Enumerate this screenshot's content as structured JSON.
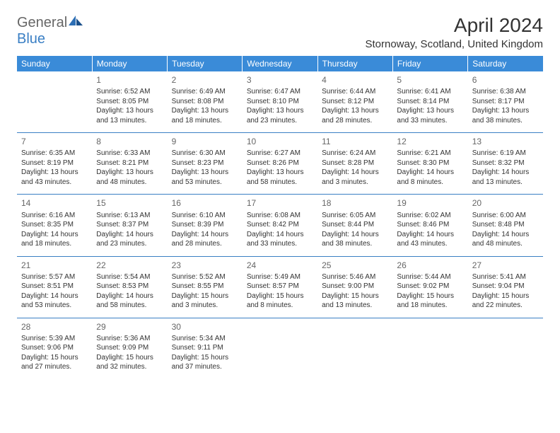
{
  "logo": {
    "general": "General",
    "blue": "Blue"
  },
  "title": "April 2024",
  "location": "Stornoway, Scotland, United Kingdom",
  "colors": {
    "header_bg": "#3a8bd8",
    "header_text": "#ffffff",
    "rule": "#3a7fc4",
    "text": "#333333",
    "daynum": "#666666"
  },
  "weekdays": [
    "Sunday",
    "Monday",
    "Tuesday",
    "Wednesday",
    "Thursday",
    "Friday",
    "Saturday"
  ],
  "weeks": [
    [
      {
        "day": "",
        "sunrise": "",
        "sunset": "",
        "daylight": ""
      },
      {
        "day": "1",
        "sunrise": "Sunrise: 6:52 AM",
        "sunset": "Sunset: 8:05 PM",
        "daylight": "Daylight: 13 hours and 13 minutes."
      },
      {
        "day": "2",
        "sunrise": "Sunrise: 6:49 AM",
        "sunset": "Sunset: 8:08 PM",
        "daylight": "Daylight: 13 hours and 18 minutes."
      },
      {
        "day": "3",
        "sunrise": "Sunrise: 6:47 AM",
        "sunset": "Sunset: 8:10 PM",
        "daylight": "Daylight: 13 hours and 23 minutes."
      },
      {
        "day": "4",
        "sunrise": "Sunrise: 6:44 AM",
        "sunset": "Sunset: 8:12 PM",
        "daylight": "Daylight: 13 hours and 28 minutes."
      },
      {
        "day": "5",
        "sunrise": "Sunrise: 6:41 AM",
        "sunset": "Sunset: 8:14 PM",
        "daylight": "Daylight: 13 hours and 33 minutes."
      },
      {
        "day": "6",
        "sunrise": "Sunrise: 6:38 AM",
        "sunset": "Sunset: 8:17 PM",
        "daylight": "Daylight: 13 hours and 38 minutes."
      }
    ],
    [
      {
        "day": "7",
        "sunrise": "Sunrise: 6:35 AM",
        "sunset": "Sunset: 8:19 PM",
        "daylight": "Daylight: 13 hours and 43 minutes."
      },
      {
        "day": "8",
        "sunrise": "Sunrise: 6:33 AM",
        "sunset": "Sunset: 8:21 PM",
        "daylight": "Daylight: 13 hours and 48 minutes."
      },
      {
        "day": "9",
        "sunrise": "Sunrise: 6:30 AM",
        "sunset": "Sunset: 8:23 PM",
        "daylight": "Daylight: 13 hours and 53 minutes."
      },
      {
        "day": "10",
        "sunrise": "Sunrise: 6:27 AM",
        "sunset": "Sunset: 8:26 PM",
        "daylight": "Daylight: 13 hours and 58 minutes."
      },
      {
        "day": "11",
        "sunrise": "Sunrise: 6:24 AM",
        "sunset": "Sunset: 8:28 PM",
        "daylight": "Daylight: 14 hours and 3 minutes."
      },
      {
        "day": "12",
        "sunrise": "Sunrise: 6:21 AM",
        "sunset": "Sunset: 8:30 PM",
        "daylight": "Daylight: 14 hours and 8 minutes."
      },
      {
        "day": "13",
        "sunrise": "Sunrise: 6:19 AM",
        "sunset": "Sunset: 8:32 PM",
        "daylight": "Daylight: 14 hours and 13 minutes."
      }
    ],
    [
      {
        "day": "14",
        "sunrise": "Sunrise: 6:16 AM",
        "sunset": "Sunset: 8:35 PM",
        "daylight": "Daylight: 14 hours and 18 minutes."
      },
      {
        "day": "15",
        "sunrise": "Sunrise: 6:13 AM",
        "sunset": "Sunset: 8:37 PM",
        "daylight": "Daylight: 14 hours and 23 minutes."
      },
      {
        "day": "16",
        "sunrise": "Sunrise: 6:10 AM",
        "sunset": "Sunset: 8:39 PM",
        "daylight": "Daylight: 14 hours and 28 minutes."
      },
      {
        "day": "17",
        "sunrise": "Sunrise: 6:08 AM",
        "sunset": "Sunset: 8:42 PM",
        "daylight": "Daylight: 14 hours and 33 minutes."
      },
      {
        "day": "18",
        "sunrise": "Sunrise: 6:05 AM",
        "sunset": "Sunset: 8:44 PM",
        "daylight": "Daylight: 14 hours and 38 minutes."
      },
      {
        "day": "19",
        "sunrise": "Sunrise: 6:02 AM",
        "sunset": "Sunset: 8:46 PM",
        "daylight": "Daylight: 14 hours and 43 minutes."
      },
      {
        "day": "20",
        "sunrise": "Sunrise: 6:00 AM",
        "sunset": "Sunset: 8:48 PM",
        "daylight": "Daylight: 14 hours and 48 minutes."
      }
    ],
    [
      {
        "day": "21",
        "sunrise": "Sunrise: 5:57 AM",
        "sunset": "Sunset: 8:51 PM",
        "daylight": "Daylight: 14 hours and 53 minutes."
      },
      {
        "day": "22",
        "sunrise": "Sunrise: 5:54 AM",
        "sunset": "Sunset: 8:53 PM",
        "daylight": "Daylight: 14 hours and 58 minutes."
      },
      {
        "day": "23",
        "sunrise": "Sunrise: 5:52 AM",
        "sunset": "Sunset: 8:55 PM",
        "daylight": "Daylight: 15 hours and 3 minutes."
      },
      {
        "day": "24",
        "sunrise": "Sunrise: 5:49 AM",
        "sunset": "Sunset: 8:57 PM",
        "daylight": "Daylight: 15 hours and 8 minutes."
      },
      {
        "day": "25",
        "sunrise": "Sunrise: 5:46 AM",
        "sunset": "Sunset: 9:00 PM",
        "daylight": "Daylight: 15 hours and 13 minutes."
      },
      {
        "day": "26",
        "sunrise": "Sunrise: 5:44 AM",
        "sunset": "Sunset: 9:02 PM",
        "daylight": "Daylight: 15 hours and 18 minutes."
      },
      {
        "day": "27",
        "sunrise": "Sunrise: 5:41 AM",
        "sunset": "Sunset: 9:04 PM",
        "daylight": "Daylight: 15 hours and 22 minutes."
      }
    ],
    [
      {
        "day": "28",
        "sunrise": "Sunrise: 5:39 AM",
        "sunset": "Sunset: 9:06 PM",
        "daylight": "Daylight: 15 hours and 27 minutes."
      },
      {
        "day": "29",
        "sunrise": "Sunrise: 5:36 AM",
        "sunset": "Sunset: 9:09 PM",
        "daylight": "Daylight: 15 hours and 32 minutes."
      },
      {
        "day": "30",
        "sunrise": "Sunrise: 5:34 AM",
        "sunset": "Sunset: 9:11 PM",
        "daylight": "Daylight: 15 hours and 37 minutes."
      },
      {
        "day": "",
        "sunrise": "",
        "sunset": "",
        "daylight": ""
      },
      {
        "day": "",
        "sunrise": "",
        "sunset": "",
        "daylight": ""
      },
      {
        "day": "",
        "sunrise": "",
        "sunset": "",
        "daylight": ""
      },
      {
        "day": "",
        "sunrise": "",
        "sunset": "",
        "daylight": ""
      }
    ]
  ]
}
